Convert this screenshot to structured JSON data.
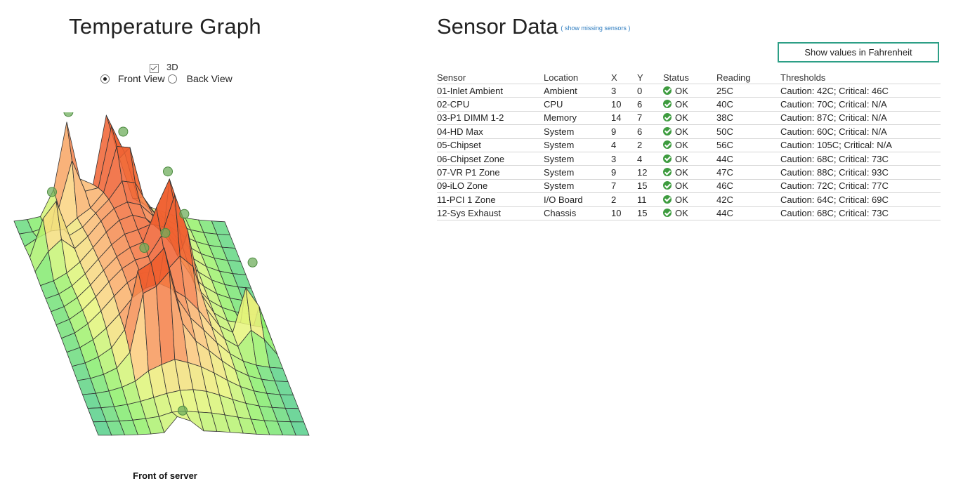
{
  "graph": {
    "title": "Temperature Graph",
    "checkbox_3d": {
      "label": "3D",
      "checked": true
    },
    "views": [
      {
        "label": "Front View",
        "selected": true
      },
      {
        "label": "Back View",
        "selected": false
      }
    ],
    "footer_label": "Front of server",
    "color_scale": [
      "#3cbf9a",
      "#8ef06a",
      "#e8f47a",
      "#fbd080",
      "#f8a060",
      "#f06030"
    ]
  },
  "sensor_panel": {
    "title": "Sensor Data",
    "missing_link": "( show missing sensors )",
    "fahrenheit_button": "Show values in Fahrenheit",
    "columns": [
      "Sensor",
      "Location",
      "X",
      "Y",
      "Status",
      "Reading",
      "Thresholds"
    ],
    "rows": [
      {
        "sensor": "01-Inlet Ambient",
        "location": "Ambient",
        "x": "3",
        "y": "0",
        "status": "OK",
        "reading": "25C",
        "thresholds": "Caution: 42C; Critical: 46C"
      },
      {
        "sensor": "02-CPU",
        "location": "CPU",
        "x": "10",
        "y": "6",
        "status": "OK",
        "reading": "40C",
        "thresholds": "Caution: 70C; Critical: N/A"
      },
      {
        "sensor": "03-P1 DIMM 1-2",
        "location": "Memory",
        "x": "14",
        "y": "7",
        "status": "OK",
        "reading": "38C",
        "thresholds": "Caution: 87C; Critical: N/A"
      },
      {
        "sensor": "04-HD Max",
        "location": "System",
        "x": "9",
        "y": "6",
        "status": "OK",
        "reading": "50C",
        "thresholds": "Caution: 60C; Critical: N/A"
      },
      {
        "sensor": "05-Chipset",
        "location": "System",
        "x": "4",
        "y": "2",
        "status": "OK",
        "reading": "56C",
        "thresholds": "Caution: 105C; Critical: N/A"
      },
      {
        "sensor": "06-Chipset Zone",
        "location": "System",
        "x": "3",
        "y": "4",
        "status": "OK",
        "reading": "44C",
        "thresholds": "Caution: 68C; Critical: 73C"
      },
      {
        "sensor": "07-VR P1 Zone",
        "location": "System",
        "x": "9",
        "y": "12",
        "status": "OK",
        "reading": "47C",
        "thresholds": "Caution: 88C; Critical: 93C"
      },
      {
        "sensor": "09-iLO Zone",
        "location": "System",
        "x": "7",
        "y": "15",
        "status": "OK",
        "reading": "46C",
        "thresholds": "Caution: 72C; Critical: 77C"
      },
      {
        "sensor": "11-PCI 1 Zone",
        "location": "I/O Board",
        "x": "2",
        "y": "11",
        "status": "OK",
        "reading": "42C",
        "thresholds": "Caution: 64C; Critical: 69C"
      },
      {
        "sensor": "12-Sys Exhaust",
        "location": "Chassis",
        "x": "10",
        "y": "15",
        "status": "OK",
        "reading": "44C",
        "thresholds": "Caution: 68C; Critical: 73C"
      }
    ]
  }
}
